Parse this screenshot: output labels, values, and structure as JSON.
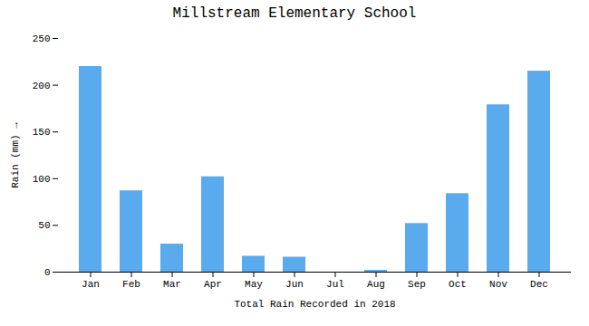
{
  "chart_data": {
    "type": "bar",
    "title": "Millstream Elementary School",
    "xlabel": "Total Rain Recorded in 2018",
    "ylabel": "Rain (mm)",
    "categories": [
      "Jan",
      "Feb",
      "Mar",
      "Apr",
      "May",
      "Jun",
      "Jul",
      "Aug",
      "Sep",
      "Oct",
      "Nov",
      "Dec"
    ],
    "values": [
      220,
      87,
      30,
      102,
      17,
      16,
      0,
      2,
      52,
      84,
      179,
      215
    ],
    "color": "#5aabee",
    "ylim": [
      0,
      250
    ],
    "yticks": [
      0,
      50,
      100,
      150,
      200,
      250
    ],
    "grid": false
  }
}
